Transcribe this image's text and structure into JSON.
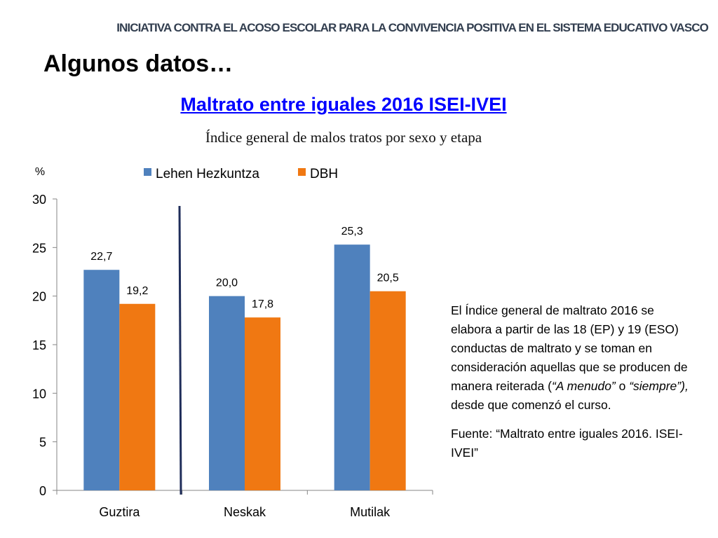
{
  "header": "INICIATIVA CONTRA EL ACOSO ESCOLAR PARA LA CONVIVENCIA POSITIVA EN EL SISTEMA EDUCATIVO VASCO",
  "title": "Algunos datos…",
  "subtitle_link": "Maltrato entre iguales 2016  ISEI-IVEI",
  "chart_heading": "Índice general de malos tratos por sexo y etapa",
  "note": {
    "p1_a": "El Índice general de maltrato 2016 se elabora a partir de las 18 (EP) y 19 (ESO) conductas de maltrato y se toman en consideración aquellas que se producen de manera reiterada (",
    "p1_b": "“A menudo”",
    "p1_c": " o ",
    "p1_d": "“siempre”),",
    "p1_e": " desde que comenzó el curso.",
    "p2": "Fuente: “Maltrato entre iguales 2016. ISEI-IVEI”"
  },
  "chart_data": {
    "type": "bar",
    "title": "",
    "ylabel": "%",
    "xlabel": "",
    "ylim": [
      0,
      30
    ],
    "yticks": [
      0,
      5,
      10,
      15,
      20,
      25,
      30
    ],
    "categories": [
      "Guztira",
      "Neskak",
      "Mutilak"
    ],
    "series": [
      {
        "name": "Lehen Hezkuntza",
        "values": [
          22.7,
          20.0,
          25.3
        ],
        "labels": [
          "22,7",
          "20,0",
          "25,3"
        ],
        "color": "#4f81bd"
      },
      {
        "name": "DBH",
        "values": [
          19.2,
          17.8,
          20.5
        ],
        "labels": [
          "19,2",
          "17,8",
          "20,5"
        ],
        "color": "#f07812"
      }
    ],
    "legend_position": "top",
    "grid": false,
    "separator_color": "#1f2d5a"
  }
}
